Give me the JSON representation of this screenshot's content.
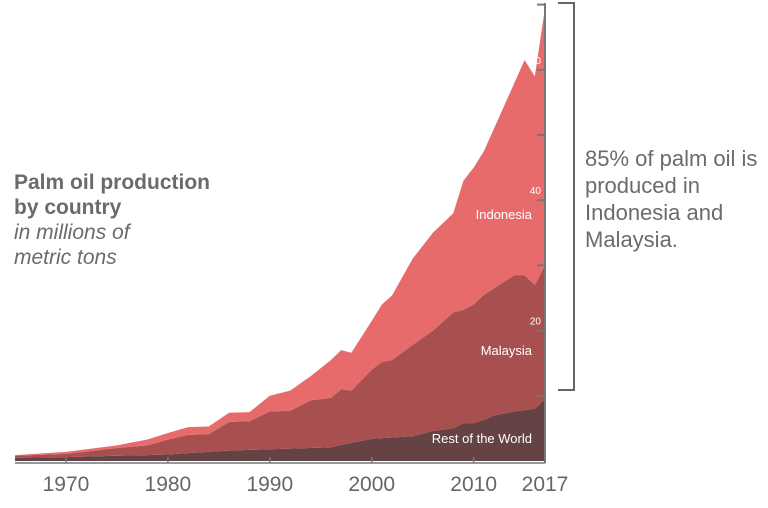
{
  "chart_data": {
    "type": "area",
    "stacked": true,
    "title": "Palm oil production by country",
    "subtitle": "in millions of metric tons",
    "annotation": "85% of palm oil is produced in Indonesia and Malaysia.",
    "x": [
      1965,
      1970,
      1975,
      1978,
      1980,
      1982,
      1984,
      1986,
      1988,
      1990,
      1992,
      1994,
      1996,
      1997,
      1998,
      2000,
      2001,
      2002,
      2004,
      2006,
      2008,
      2009,
      2010,
      2011,
      2012,
      2014,
      2015,
      2016,
      2017
    ],
    "series": [
      {
        "name": "Rest of the World",
        "color": "#654244",
        "values": [
          0.5,
          0.6,
          0.8,
          0.9,
          1,
          1.2,
          1.4,
          1.6,
          1.7,
          1.8,
          1.9,
          2,
          2.1,
          2.5,
          2.8,
          3.4,
          3.5,
          3.6,
          3.8,
          4.6,
          5,
          5.8,
          5.8,
          6.3,
          7,
          7.6,
          7.8,
          8,
          9.5
        ]
      },
      {
        "name": "Malaysia",
        "color": "#a85050",
        "values": [
          0.3,
          0.5,
          1.2,
          1.5,
          2.3,
          2.8,
          2.7,
          4.4,
          4.4,
          5.8,
          5.8,
          7.3,
          7.6,
          8.5,
          8,
          10.6,
          11.7,
          11.9,
          14,
          15.4,
          17.8,
          17.4,
          18.2,
          19.2,
          19.5,
          20.9,
          20.7,
          19,
          20.5
        ]
      },
      {
        "name": "Indonesia",
        "color": "#e86b6b",
        "values": [
          0.1,
          0.3,
          0.4,
          0.9,
          1,
          1.2,
          1.2,
          1.4,
          1.4,
          2.4,
          3.1,
          3.7,
          5.8,
          6,
          5.8,
          7.5,
          8.8,
          9.9,
          13.2,
          15,
          15.2,
          19.8,
          21,
          22,
          24.5,
          29.5,
          33,
          32,
          39.5
        ]
      }
    ],
    "xticks": [
      "1970",
      "1980",
      "1990",
      "2000",
      "2010",
      "2017"
    ],
    "xtick_values": [
      1970,
      1980,
      1990,
      2000,
      2010,
      2017
    ],
    "yticks": [
      "20",
      "40",
      "60"
    ],
    "ytick_values": [
      20,
      40,
      60
    ],
    "ylim": [
      0,
      70
    ],
    "xlim": [
      1965,
      2017
    ],
    "axis_color": "#6f7a7a"
  },
  "labels": {
    "title_line1": "Palm oil production",
    "title_line2": "by country",
    "subtitle_line1": "in millions of",
    "subtitle_line2": "metric tons",
    "note": "85% of palm oil is produced in Indonesia and Malaysia."
  }
}
